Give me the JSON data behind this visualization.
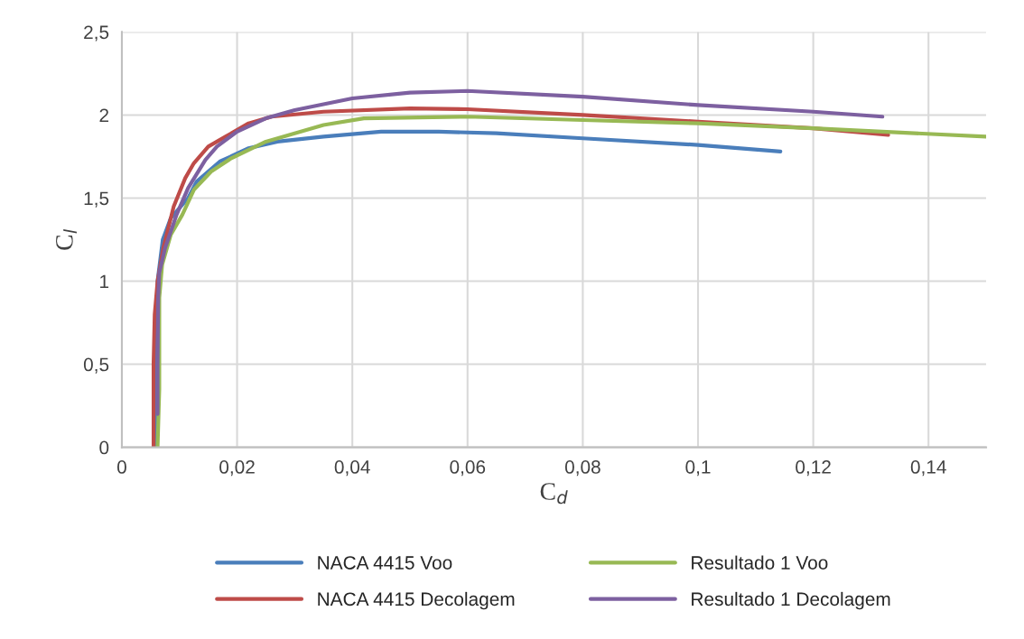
{
  "chart_data": {
    "type": "line",
    "xlabel": "C$_{d}$",
    "ylabel": "C$_{l}$",
    "xlim": [
      0,
      0.15
    ],
    "ylim": [
      0,
      2.5
    ],
    "xticks": [
      0,
      {
        "value": 0.02,
        "label": "0,02"
      },
      {
        "value": 0.04,
        "label": "0,04"
      },
      {
        "value": 0.06,
        "label": "0,06"
      },
      {
        "value": 0.08,
        "label": "0,08"
      },
      {
        "value": 0.1,
        "label": "0,1"
      },
      {
        "value": 0.12,
        "label": "0,12"
      },
      {
        "value": 0.14,
        "label": "0,14"
      }
    ],
    "yticks": [
      0,
      {
        "value": 0.5,
        "label": "0,5"
      },
      1,
      {
        "value": 1.5,
        "label": "1,5"
      },
      2,
      {
        "value": 2.5,
        "label": "2,5"
      }
    ],
    "grid": true,
    "legend": "bottom",
    "marker": "none",
    "line_style": "solid",
    "series": [
      {
        "name": "NACA 4415 Voo",
        "color": "#4a7ebb",
        "x": [
          0.0061,
          0.0061,
          0.0062,
          0.0071,
          0.0085,
          0.0115,
          0.013,
          0.017,
          0.022,
          0.027,
          0.035,
          0.045,
          0.055,
          0.065,
          0.08,
          0.1,
          0.1143
        ],
        "values": [
          0,
          0.5,
          1.0,
          1.25,
          1.38,
          1.5,
          1.6,
          1.72,
          1.8,
          1.84,
          1.87,
          1.9,
          1.9,
          1.89,
          1.86,
          1.82,
          1.78
        ]
      },
      {
        "name": "NACA 4415 Decolagem",
        "color": "#be4b48",
        "x": [
          0.0055,
          0.0055,
          0.0057,
          0.0062,
          0.0072,
          0.009,
          0.011,
          0.0125,
          0.015,
          0.018,
          0.022,
          0.026,
          0.035,
          0.05,
          0.06,
          0.08,
          0.1,
          0.12,
          0.133
        ],
        "values": [
          0,
          0.5,
          0.8,
          1.0,
          1.2,
          1.45,
          1.62,
          1.71,
          1.81,
          1.87,
          1.95,
          1.99,
          2.02,
          2.04,
          2.035,
          2.0,
          1.96,
          1.92,
          1.88
        ]
      },
      {
        "name": "Resultado 1 Voo",
        "color": "#98b954",
        "x": [
          0.0062,
          0.0065,
          0.0065,
          0.007,
          0.0085,
          0.0105,
          0.0125,
          0.0155,
          0.019,
          0.025,
          0.03,
          0.035,
          0.042,
          0.06,
          0.08,
          0.1,
          0.12,
          0.15
        ],
        "values": [
          0,
          0.35,
          0.9,
          1.1,
          1.28,
          1.4,
          1.55,
          1.66,
          1.74,
          1.84,
          1.89,
          1.94,
          1.98,
          1.99,
          1.97,
          1.95,
          1.92,
          1.87
        ]
      },
      {
        "name": "Resultado 1 Decolagem",
        "color": "#7d60a0",
        "x": [
          0.0062,
          0.0062,
          0.0063,
          0.0065,
          0.0075,
          0.0095,
          0.0115,
          0.0145,
          0.0165,
          0.02,
          0.025,
          0.03,
          0.04,
          0.05,
          0.06,
          0.08,
          0.1,
          0.12,
          0.132
        ],
        "values": [
          0.2,
          0.5,
          0.9,
          1.05,
          1.2,
          1.4,
          1.56,
          1.73,
          1.81,
          1.9,
          1.98,
          2.03,
          2.1,
          2.135,
          2.145,
          2.11,
          2.06,
          2.02,
          1.99
        ]
      }
    ]
  }
}
